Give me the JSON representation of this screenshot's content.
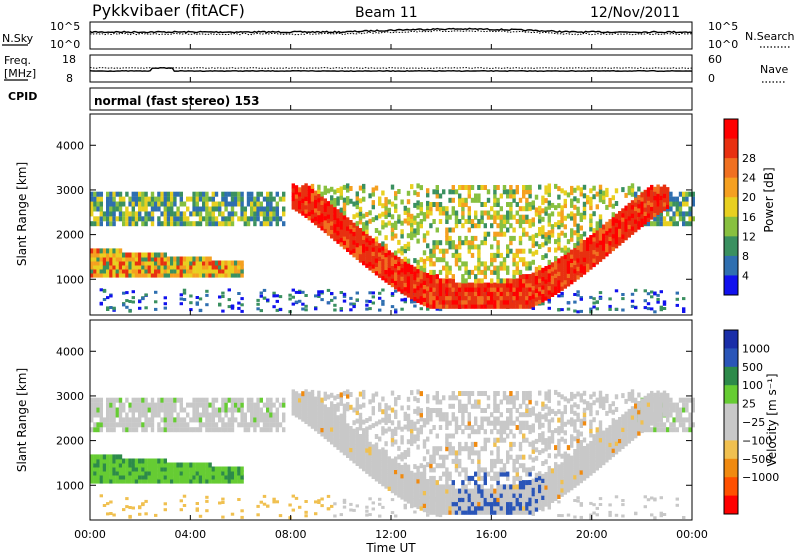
{
  "header": {
    "station": "Pykkvibaer (fitACF)",
    "beam": "Beam 11",
    "date": "12/Nov/2011"
  },
  "panel_sky": {
    "left_label": "N.Sky",
    "right_label": "N.Search",
    "left_top": "10^5",
    "left_bottom": "10^0",
    "right_top": "10^5",
    "right_bottom": "10^0"
  },
  "panel_freq": {
    "left_label_1": "Freq.",
    "left_label_2": "[MHz]",
    "right_label": "Nave",
    "left_top": "18",
    "left_bottom": "8",
    "right_top": "60",
    "right_bottom": "0"
  },
  "cpid": {
    "label": "CPID",
    "text": "normal (fast stereo) 153"
  },
  "colors": {
    "power": [
      "#1111ee",
      "#2f6fb0",
      "#3a9060",
      "#88c040",
      "#e8d020",
      "#f5a020",
      "#f07020",
      "#e83010",
      "#ff0000"
    ],
    "velocity": [
      "#ff0000",
      "#ff5000",
      "#f08a10",
      "#f0c050",
      "#c8c8c8",
      "#c8c8c8",
      "#66cc33",
      "#2d8a4a",
      "#2a55b8",
      "#1a2ea8"
    ]
  },
  "chart_data": [
    {
      "type": "heatmap",
      "name": "power",
      "ylabel": "Slant Range [km]",
      "yticks": [
        "1000",
        "2000",
        "3000",
        "4000"
      ],
      "xticks": [
        "00:00",
        "04:00",
        "08:00",
        "12:00",
        "16:00",
        "20:00",
        "00:00"
      ],
      "colorbar_label": "Power [dB]",
      "colorbar_ticks": [
        "4",
        "8",
        "12",
        "16",
        "20",
        "24",
        "28"
      ]
    },
    {
      "type": "heatmap",
      "name": "velocity",
      "ylabel": "Slant Range [km]",
      "yticks": [
        "1000",
        "2000",
        "3000",
        "4000"
      ],
      "xticks": [
        "00:00",
        "04:00",
        "08:00",
        "12:00",
        "16:00",
        "20:00",
        "00:00"
      ],
      "xlabel": "Time UT",
      "colorbar_label": "Velocity [m s⁻¹]",
      "colorbar_ticks": [
        "1000",
        "500",
        "100",
        "25",
        "−25",
        "−100",
        "−500",
        "−1000"
      ]
    }
  ]
}
